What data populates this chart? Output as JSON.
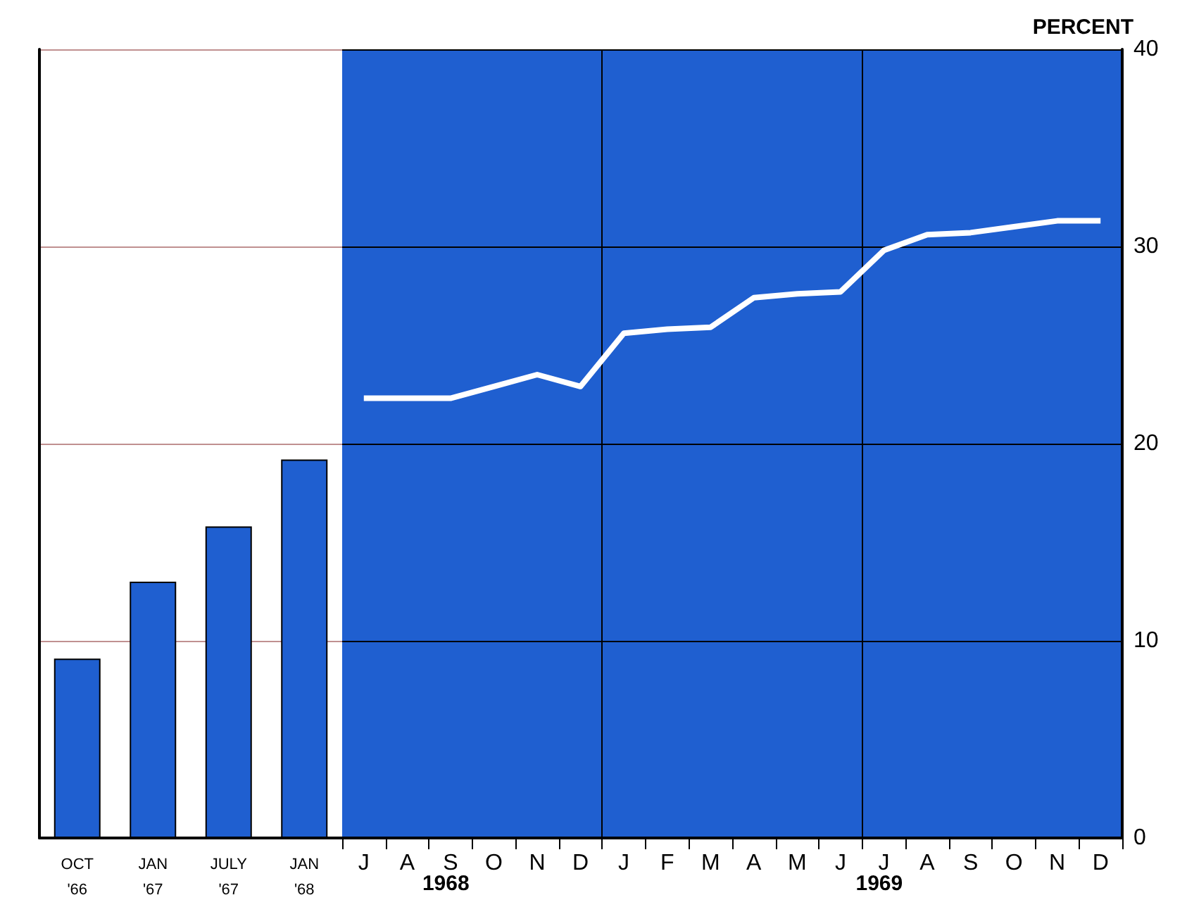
{
  "chart_data": [
    {
      "type": "bar",
      "categories": [
        "OCT\n'66",
        "JAN\n'67",
        "JULY\n'67",
        "JAN\n'68"
      ],
      "values": [
        9.1,
        13.0,
        15.8,
        19.2
      ],
      "color": "#1f5fd0",
      "ylim": [
        0,
        40
      ],
      "yticks": [
        0,
        10,
        20,
        30,
        40
      ],
      "grid": "y",
      "tick_labels": "x"
    },
    {
      "type": "line",
      "ylabel": "PERCENT",
      "categories": [
        "J",
        "A",
        "S",
        "O",
        "N",
        "D",
        "J",
        "F",
        "M",
        "A",
        "M",
        "J",
        "J",
        "A",
        "S",
        "O",
        "N",
        "D"
      ],
      "series": [
        {
          "color": "#ffffff",
          "values": [
            22.3,
            22.3,
            22.3,
            22.9,
            23.5,
            22.9,
            25.6,
            25.8,
            25.9,
            27.4,
            27.6,
            27.7,
            29.8,
            30.6,
            30.7,
            31.0,
            31.3,
            31.3
          ]
        }
      ],
      "ylim": [
        0,
        40
      ],
      "yticks": [
        0,
        10,
        20,
        30,
        40
      ],
      "grid": true,
      "marker": "none",
      "line_style": "solid",
      "bands": [
        {
          "axis": "y",
          "from": 0,
          "to": 40,
          "color": "#1f5fd0"
        }
      ],
      "annotations": [
        "1968",
        "1969"
      ]
    }
  ]
}
